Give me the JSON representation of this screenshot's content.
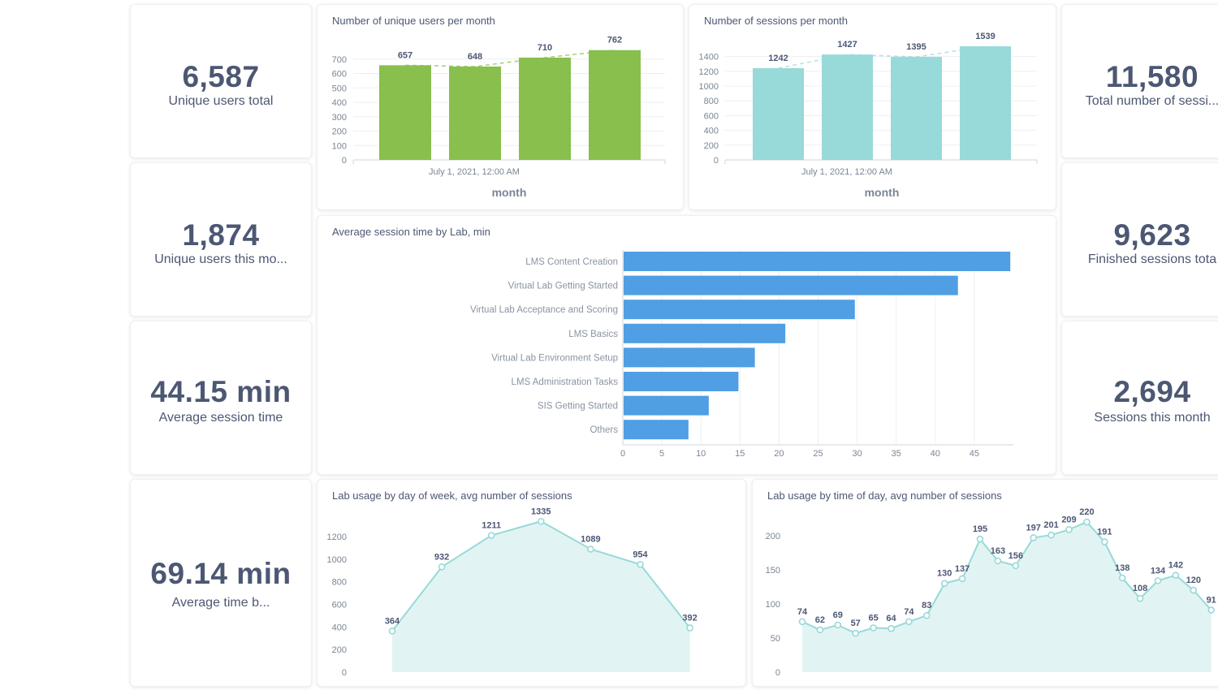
{
  "kpis": {
    "users_total": {
      "value": "6,587",
      "label": "Unique users total"
    },
    "users_month": {
      "value": "1,874",
      "label": "Unique users this mo..."
    },
    "avg_session": {
      "value": "44.15 min",
      "label": "Average session time"
    },
    "avg_time_b": {
      "value": "69.14 min",
      "label": "Average time b..."
    },
    "sessions_total": {
      "value": "11,580",
      "label": "Total number of sessi..."
    },
    "finished_sessions": {
      "value": "9,623",
      "label": "Finished sessions tota"
    },
    "sessions_month": {
      "value": "2,694",
      "label": "Sessions this month"
    }
  },
  "colors": {
    "green": "#88bf4d",
    "teal": "#98d9d9",
    "blue": "#509ee3",
    "area_line": "#98d9d9",
    "area_fill": "#e1f4f3",
    "text": "#4c5773"
  },
  "chart_data": [
    {
      "id": "users",
      "type": "bar",
      "title": "Number of unique users per month",
      "xlabel": "month",
      "x_tick_label": "July 1, 2021, 12:00 AM",
      "categories": [
        "",
        "",
        "",
        ""
      ],
      "values": [
        657,
        648,
        710,
        762
      ],
      "yticks": [
        0,
        100,
        200,
        300,
        400,
        500,
        600,
        700
      ],
      "ylim": [
        0,
        800
      ],
      "trend_line": true,
      "color": "#88bf4d"
    },
    {
      "id": "sessions",
      "type": "bar",
      "title": "Number of sessions per month",
      "xlabel": "month",
      "x_tick_label": "July 1, 2021, 12:00 AM",
      "categories": [
        "",
        "",
        "",
        ""
      ],
      "values": [
        1242,
        1427,
        1395,
        1539
      ],
      "yticks": [
        0,
        200,
        400,
        600,
        800,
        1000,
        1200,
        1400
      ],
      "ylim": [
        0,
        1550
      ],
      "trend_line": true,
      "color": "#98d9d9"
    },
    {
      "id": "avg_time",
      "type": "bar",
      "orientation": "horizontal",
      "title": "Average session time by Lab, min",
      "categories": [
        "LMS Content Creation",
        "Virtual Lab Getting Started",
        "Virtual Lab Acceptance and Scoring",
        "LMS Basics",
        "Virtual Lab Environment Setup",
        "LMS Administration Tasks",
        "SIS Getting Started",
        "Others"
      ],
      "values": [
        49.5,
        42.8,
        29.6,
        20.7,
        16.8,
        14.7,
        10.9,
        8.3
      ],
      "xticks": [
        0,
        5,
        10,
        15,
        20,
        25,
        30,
        35,
        40,
        45
      ],
      "xlim": [
        0,
        50
      ],
      "color": "#509ee3"
    },
    {
      "id": "dow",
      "type": "area",
      "title": "Lab usage by day of week, avg number of sessions",
      "values": [
        364,
        932,
        1211,
        1335,
        1089,
        954,
        392
      ],
      "yticks": [
        0,
        200,
        400,
        600,
        800,
        1000,
        1200
      ],
      "ylim": [
        0,
        1380
      ]
    },
    {
      "id": "tod",
      "type": "area",
      "title": "Lab usage by time of day, avg number of sessions",
      "values": [
        74,
        62,
        69,
        57,
        65,
        64,
        74,
        83,
        130,
        137,
        195,
        163,
        156,
        197,
        201,
        209,
        220,
        191,
        138,
        108,
        134,
        142,
        120,
        91
      ],
      "yticks": [
        0,
        50,
        100,
        150,
        200
      ],
      "ylim": [
        0,
        232
      ]
    }
  ]
}
